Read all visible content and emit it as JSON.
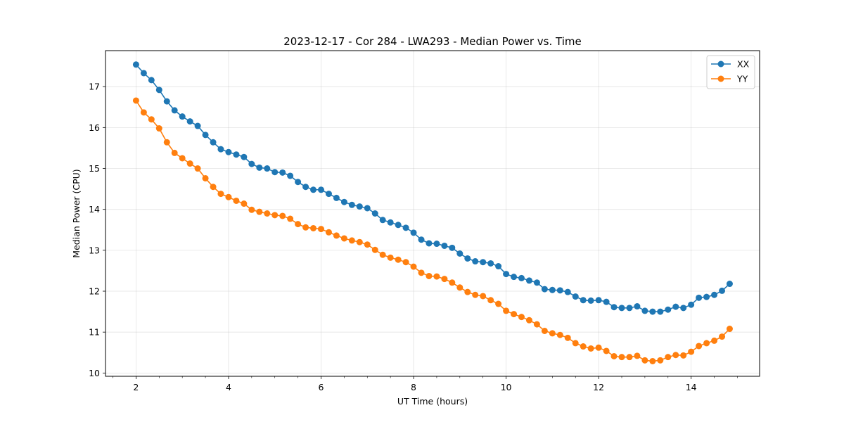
{
  "chart_data": {
    "type": "line",
    "title": "2023-12-17 - Cor 284 - LWA293 - Median Power vs. Time",
    "xlabel": "UT Time (hours)",
    "ylabel": "Median Power (CPU)",
    "xlim": [
      1.34,
      15.48
    ],
    "ylim": [
      9.92,
      17.88
    ],
    "xticks": [
      2,
      4,
      6,
      8,
      10,
      12,
      14
    ],
    "xtick_labels": [
      "2",
      "4",
      "6",
      "8",
      "10",
      "12",
      "14"
    ],
    "yticks": [
      10,
      11,
      12,
      13,
      14,
      15,
      16,
      17
    ],
    "ytick_labels": [
      "10",
      "11",
      "12",
      "13",
      "14",
      "15",
      "16",
      "17"
    ],
    "grid": true,
    "legend_position": "top-right",
    "x": [
      2.0,
      2.167,
      2.333,
      2.5,
      2.667,
      2.833,
      3.0,
      3.167,
      3.333,
      3.5,
      3.667,
      3.833,
      4.0,
      4.167,
      4.333,
      4.5,
      4.667,
      4.833,
      5.0,
      5.167,
      5.333,
      5.5,
      5.667,
      5.833,
      6.0,
      6.167,
      6.333,
      6.5,
      6.667,
      6.833,
      7.0,
      7.167,
      7.333,
      7.5,
      7.667,
      7.833,
      8.0,
      8.167,
      8.333,
      8.5,
      8.667,
      8.833,
      9.0,
      9.167,
      9.333,
      9.5,
      9.667,
      9.833,
      10.0,
      10.167,
      10.333,
      10.5,
      10.667,
      10.833,
      11.0,
      11.167,
      11.333,
      11.5,
      11.667,
      11.833,
      12.0,
      12.167,
      12.333,
      12.5,
      12.667,
      12.833,
      13.0,
      13.167,
      13.333,
      13.5,
      13.667,
      13.833,
      14.0,
      14.167,
      14.333,
      14.5,
      14.667,
      14.833
    ],
    "series": [
      {
        "name": "XX",
        "color": "#1f77b4",
        "values": [
          17.54,
          17.33,
          17.16,
          16.92,
          16.64,
          16.42,
          16.27,
          16.15,
          16.04,
          15.82,
          15.64,
          15.47,
          15.4,
          15.34,
          15.28,
          15.11,
          15.02,
          15.0,
          14.91,
          14.9,
          14.82,
          14.67,
          14.55,
          14.48,
          14.48,
          14.38,
          14.28,
          14.18,
          14.11,
          14.07,
          14.03,
          13.9,
          13.74,
          13.68,
          13.62,
          13.55,
          13.43,
          13.26,
          13.17,
          13.16,
          13.11,
          13.06,
          12.92,
          12.8,
          12.73,
          12.71,
          12.68,
          12.61,
          12.42,
          12.35,
          12.32,
          12.26,
          12.21,
          12.05,
          12.03,
          12.02,
          11.98,
          11.87,
          11.78,
          11.77,
          11.78,
          11.74,
          11.61,
          11.59,
          11.59,
          11.63,
          11.52,
          11.5,
          11.5,
          11.55,
          11.62,
          11.59,
          11.67,
          11.84,
          11.86,
          11.91,
          12.01,
          12.18
        ]
      },
      {
        "name": "YY",
        "color": "#ff7f0e",
        "values": [
          16.66,
          16.37,
          16.2,
          15.98,
          15.64,
          15.38,
          15.25,
          15.12,
          15.0,
          14.76,
          14.55,
          14.38,
          14.3,
          14.21,
          14.14,
          13.99,
          13.94,
          13.9,
          13.86,
          13.84,
          13.77,
          13.64,
          13.56,
          13.54,
          13.52,
          13.44,
          13.36,
          13.29,
          13.24,
          13.2,
          13.14,
          13.01,
          12.89,
          12.82,
          12.77,
          12.71,
          12.6,
          12.45,
          12.37,
          12.36,
          12.3,
          12.21,
          12.09,
          11.98,
          11.91,
          11.88,
          11.78,
          11.69,
          11.52,
          11.44,
          11.37,
          11.29,
          11.19,
          11.03,
          10.97,
          10.93,
          10.86,
          10.73,
          10.65,
          10.6,
          10.62,
          10.54,
          10.41,
          10.39,
          10.39,
          10.42,
          10.31,
          10.29,
          10.31,
          10.39,
          10.44,
          10.43,
          10.52,
          10.66,
          10.73,
          10.79,
          10.89,
          11.08
        ]
      }
    ]
  }
}
